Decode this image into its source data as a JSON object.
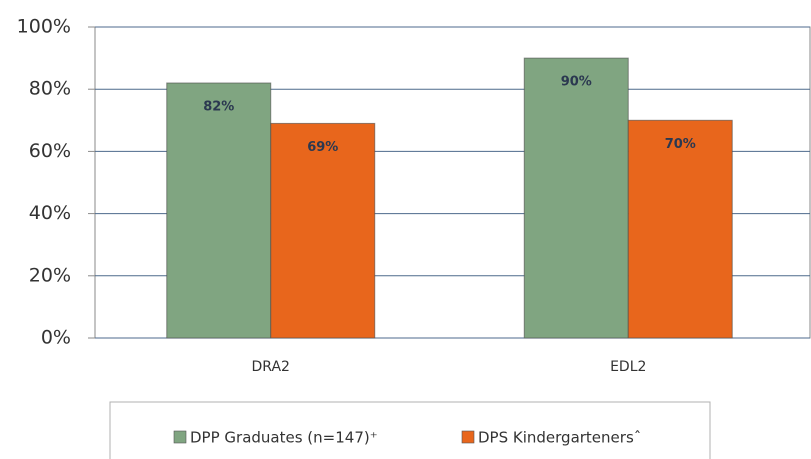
{
  "chart_data": {
    "type": "bar",
    "categories": [
      "DRA2",
      "EDL2"
    ],
    "series": [
      {
        "name": "DPP Graduates (n=147)⁺",
        "color": "#80a581",
        "values": [
          82,
          90
        ],
        "value_labels": [
          "82%",
          "90%"
        ]
      },
      {
        "name": "DPS Kindergartenersˆ",
        "color": "#e8661c",
        "values": [
          69,
          70
        ],
        "value_labels": [
          "69%",
          "70%"
        ]
      }
    ],
    "ylim": [
      0,
      100
    ],
    "yticks": [
      {
        "value": 0,
        "label": "0%"
      },
      {
        "value": 20,
        "label": "20%"
      },
      {
        "value": 40,
        "label": "40%"
      },
      {
        "value": 60,
        "label": "60%"
      },
      {
        "value": 80,
        "label": "80%"
      },
      {
        "value": 100,
        "label": "100%"
      }
    ],
    "grid": true,
    "legend": "bottom"
  }
}
